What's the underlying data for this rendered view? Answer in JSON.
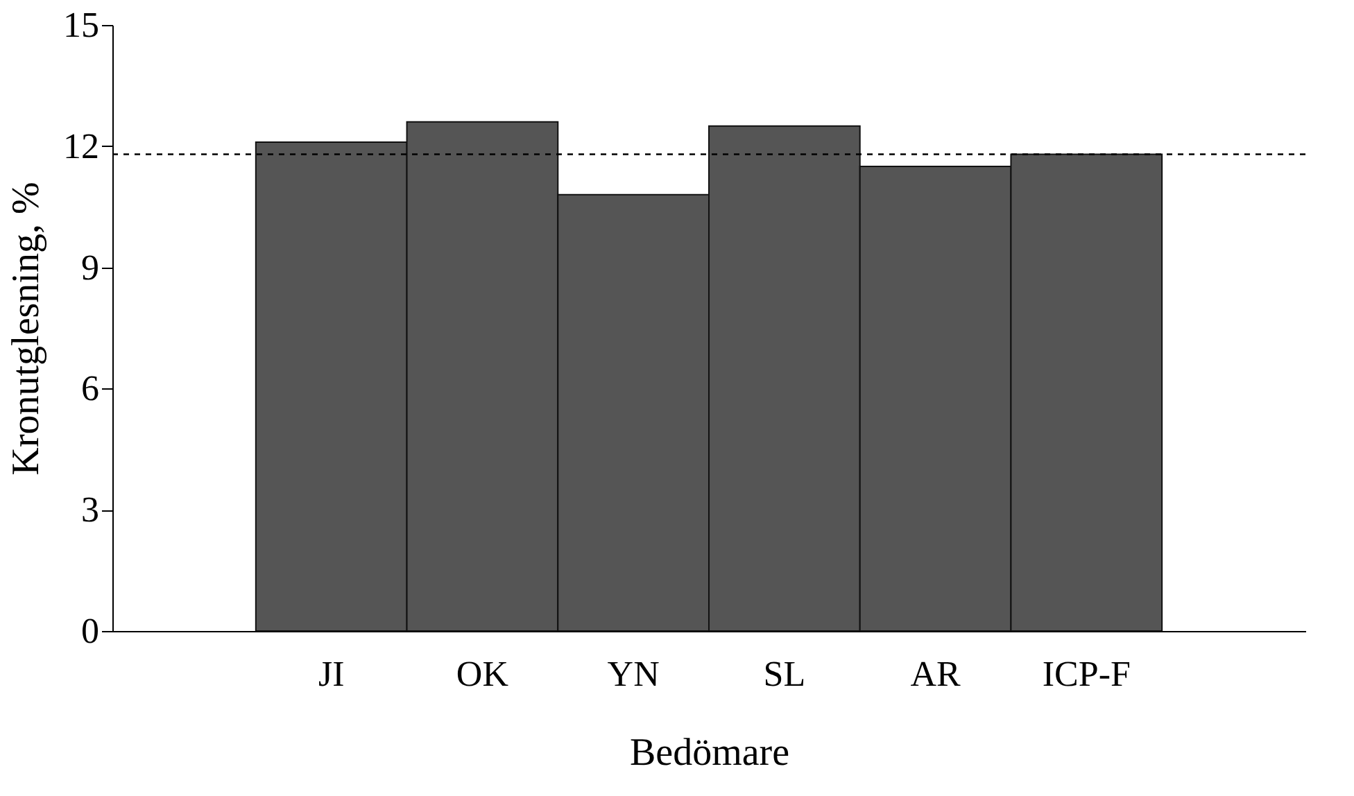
{
  "chart_data": {
    "type": "bar",
    "xlabel": "Bedömare",
    "ylabel": "Kronutglesning, %",
    "categories": [
      "JI",
      "OK",
      "YN",
      "SL",
      "AR",
      "ICP-F"
    ],
    "values": [
      12.1,
      12.6,
      10.8,
      12.5,
      11.5,
      11.8
    ],
    "color": "#555555",
    "ylim": [
      0,
      15
    ],
    "yticks": [
      0,
      3,
      6,
      9,
      12,
      15
    ],
    "grid": false,
    "ref_lines": [
      {
        "axis": "y",
        "value": 11.8,
        "color": "#000000",
        "line_style": "dashed"
      }
    ]
  }
}
